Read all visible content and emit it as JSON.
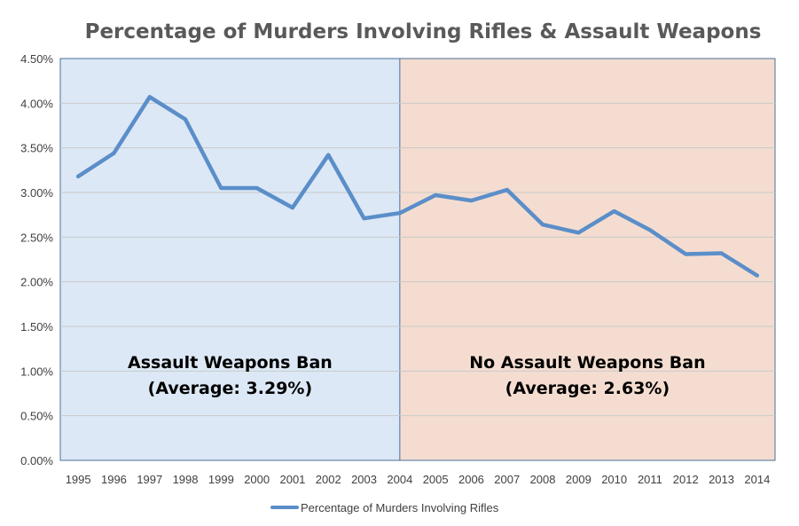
{
  "chart_data": {
    "type": "line",
    "title": "Percentage of Murders Involving Rifles & Assault Weapons",
    "categories": [
      "1995",
      "1996",
      "1997",
      "1998",
      "1999",
      "2000",
      "2001",
      "2002",
      "2003",
      "2004",
      "2005",
      "2006",
      "2007",
      "2008",
      "2009",
      "2010",
      "2011",
      "2012",
      "2013",
      "2014"
    ],
    "series": [
      {
        "name": "Percentage of Murders Involving Rifles",
        "color": "#5b8ec9",
        "values": [
          3.18,
          3.44,
          4.07,
          3.82,
          3.05,
          3.05,
          2.83,
          3.42,
          2.71,
          2.77,
          2.97,
          2.91,
          3.03,
          2.64,
          2.55,
          2.79,
          2.58,
          2.31,
          2.32,
          2.07
        ]
      }
    ],
    "ylim": [
      0,
      4.5
    ],
    "y_ticks": [
      "0.00%",
      "0.50%",
      "1.00%",
      "1.50%",
      "2.00%",
      "2.50%",
      "3.00%",
      "3.50%",
      "4.00%",
      "4.50%"
    ],
    "y_tick_values": [
      0,
      0.5,
      1.0,
      1.5,
      2.0,
      2.5,
      3.0,
      3.5,
      4.0,
      4.5
    ],
    "regions": [
      {
        "from": "1995",
        "to": "2004",
        "color": "#dce8f5",
        "label_line1": "Assault Weapons Ban",
        "label_line2": "(Average: 3.29%)"
      },
      {
        "from": "2004",
        "to": "2014",
        "color": "#f4ddd0",
        "label_line1": "No Assault Weapons Ban",
        "label_line2": "(Average: 2.63%)"
      }
    ],
    "grid": true,
    "legend_position": "bottom",
    "xlabel": "",
    "ylabel": ""
  }
}
